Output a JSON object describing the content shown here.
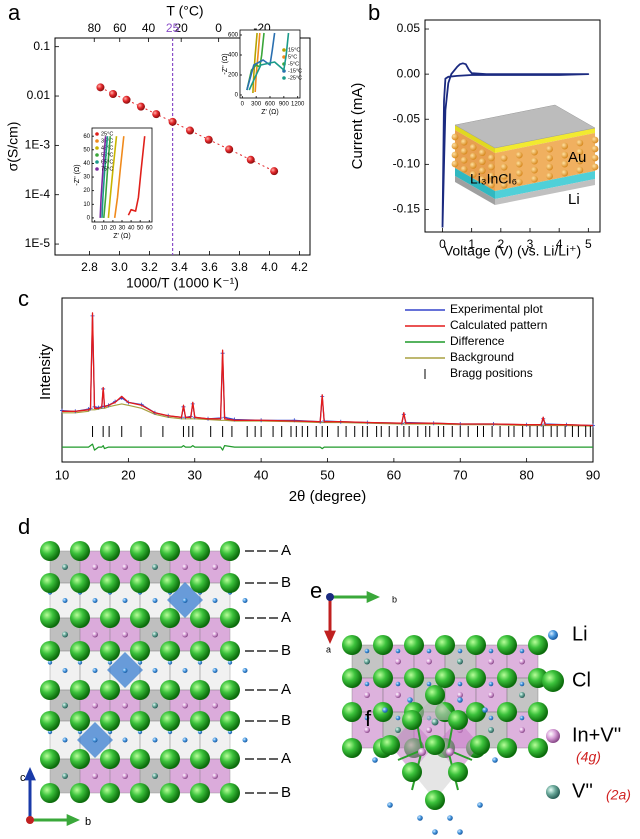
{
  "chart_data": [
    {
      "type": "scatter",
      "label": "a",
      "x2label": "T (°C)",
      "xlabel": "1000/T (1000 K⁻¹)",
      "ylabel": "σ(S/cm)",
      "x": [
        2.873,
        2.957,
        3.047,
        3.143,
        3.245,
        3.354,
        3.47,
        3.595,
        3.731,
        3.875,
        4.031
      ],
      "values": [
        0.015,
        0.011,
        0.0084,
        0.0061,
        0.0043,
        0.003,
        0.002,
        0.0013,
        0.00083,
        0.00051,
        0.0003
      ],
      "color": "#e3262a",
      "xlim": [
        2.57,
        4.27
      ],
      "ylim": [
        6e-06,
        0.15
      ],
      "log_y": true,
      "xticks": [
        2.8,
        {
          "value": 3,
          "label": "3.0"
        },
        3.2,
        3.4,
        3.6,
        3.8,
        {
          "value": 4,
          "label": "4.0"
        },
        4.2
      ],
      "yticks": [
        0.1,
        0.01,
        {
          "value": 0.001,
          "label": "1E-3"
        },
        {
          "value": 0.0001,
          "label": "1E-4"
        },
        {
          "value": 1e-05,
          "label": "1E-5"
        }
      ],
      "x2ticks": [
        80,
        60,
        40,
        20,
        0,
        -20
      ],
      "marker_x2": 25,
      "marker_color": "#8a4fc8"
    },
    {
      "type": "line",
      "xlabel": "Z' (Ω)",
      "ylabel": "-Z'' (Ω)",
      "xlim": [
        -3,
        63
      ],
      "ylim": [
        -3,
        66
      ],
      "xticks": [
        0,
        10,
        20,
        30,
        40,
        50,
        60
      ],
      "yticks": [
        0,
        10,
        20,
        30,
        40,
        50,
        60
      ],
      "series": [
        {
          "name": "25°C",
          "color": "#e0201b",
          "x": [
            37,
            40,
            45,
            48,
            51,
            55
          ],
          "values": [
            2,
            6,
            5,
            15,
            35,
            60
          ]
        },
        {
          "name": "35°C",
          "color": "#f08a1c",
          "x": [
            22,
            25,
            28,
            32
          ],
          "values": [
            0,
            15,
            35,
            60
          ]
        },
        {
          "name": "45°C",
          "color": "#c8b400",
          "x": [
            15,
            17,
            20,
            24
          ],
          "values": [
            0,
            15,
            35,
            60
          ]
        },
        {
          "name": "55°C",
          "color": "#3aa63a",
          "x": [
            10,
            12,
            14,
            17
          ],
          "values": [
            0,
            15,
            35,
            60
          ]
        },
        {
          "name": "65°C",
          "color": "#1a9a8a",
          "x": [
            8,
            9,
            11,
            14
          ],
          "values": [
            0,
            15,
            35,
            60
          ]
        },
        {
          "name": "75°C",
          "color": "#7a2aa0",
          "x": [
            6,
            7,
            9,
            12
          ],
          "values": [
            0,
            15,
            35,
            60
          ]
        }
      ]
    },
    {
      "type": "line",
      "xlabel": "Z' (Ω)",
      "ylabel": "-Z'' (Ω)",
      "xlim": [
        -50,
        1250
      ],
      "ylim": [
        -30,
        650
      ],
      "xticks": [
        0,
        300,
        600,
        900,
        1200
      ],
      "yticks": [
        0,
        200,
        400,
        600
      ],
      "series": [
        {
          "name": "15°C",
          "color": "#b5a300",
          "x": [
            230,
            250,
            280,
            320
          ],
          "values": [
            20,
            200,
            400,
            620
          ]
        },
        {
          "name": "5°C",
          "color": "#f08a1c",
          "x": [
            280,
            300,
            340,
            380
          ],
          "values": [
            30,
            200,
            400,
            620
          ]
        },
        {
          "name": "-5°C",
          "color": "#3aa63a",
          "x": [
            100,
            200,
            300,
            380,
            420,
            470
          ],
          "values": [
            50,
            250,
            300,
            280,
            400,
            620
          ]
        },
        {
          "name": "-15°C",
          "color": "#2a6fb0",
          "x": [
            100,
            250,
            450,
            600,
            650,
            700
          ],
          "values": [
            50,
            300,
            350,
            300,
            450,
            620
          ]
        },
        {
          "name": "-25°C",
          "color": "#1a9a8a",
          "x": [
            150,
            400,
            700,
            900,
            950,
            1000
          ],
          "values": [
            50,
            300,
            330,
            250,
            400,
            620
          ]
        }
      ]
    },
    {
      "type": "line",
      "label": "b",
      "xlabel": "Voltage (V) (vs. Li/Li⁺)",
      "ylabel": "Current (mA)",
      "x": [
        0,
        0.05,
        0.1,
        0.2,
        0.3,
        0.5,
        0.6,
        0.7,
        0.8,
        0.9,
        1.0,
        1.5,
        2,
        3,
        4,
        5,
        4,
        3,
        2,
        1,
        0.5,
        0.2,
        0.1,
        0.05,
        0
      ],
      "values": [
        -0.17,
        -0.1,
        -0.04,
        -0.01,
        0,
        0.008,
        0.011,
        0.012,
        0.011,
        0.005,
        0.001,
        0,
        0,
        0,
        0,
        0,
        -0.001,
        -0.001,
        -0.001,
        -0.001,
        -0.002,
        -0.003,
        -0.005,
        -0.03,
        -0.17
      ],
      "color": "#1b2a80",
      "xlim": [
        -0.6,
        5.4
      ],
      "ylim": [
        -0.175,
        0.06
      ],
      "xticks": [
        0,
        1,
        2,
        3,
        4,
        5
      ],
      "yticks": [
        0.05,
        {
          "value": 0,
          "label": "0.00"
        },
        -0.05,
        {
          "value": -0.1,
          "label": "-0.10"
        },
        -0.15
      ],
      "inset_labels": [
        "Au",
        "Li₃InCl₆",
        "Li"
      ]
    },
    {
      "type": "line",
      "label": "c",
      "xlabel": "2θ (degree)",
      "ylabel": "Intensity",
      "xlim": [
        10,
        90
      ],
      "ylim": [
        0,
        110
      ],
      "xticks": [
        10,
        20,
        30,
        40,
        50,
        60,
        70,
        80,
        90
      ],
      "x": [
        10,
        12,
        14,
        14.3,
        14.6,
        14.9,
        15.5,
        16,
        16.2,
        16.4,
        17,
        18,
        19,
        20,
        22,
        24,
        26,
        28,
        28.3,
        28.6,
        29.4,
        29.7,
        30,
        32,
        33.9,
        34.2,
        34.5,
        36,
        40,
        45,
        48.9,
        49.2,
        49.5,
        52,
        56,
        61.2,
        61.5,
        61.8,
        66,
        70,
        75,
        80,
        82.2,
        82.5,
        82.8,
        86,
        90
      ],
      "series": [
        {
          "name": "Experimental plot",
          "color": "#3344cc",
          "markers": true,
          "values": [
            34.5,
            34,
            35.5,
            36,
            98,
            37,
            36.5,
            37,
            49,
            37.5,
            38,
            40.5,
            43,
            40,
            38.5,
            33,
            31,
            30,
            37,
            30,
            30.5,
            39,
            30,
            29,
            29.5,
            73,
            30,
            28.5,
            28,
            28,
            27,
            44,
            27.5,
            27,
            26.5,
            26,
            32,
            26.5,
            26,
            25.5,
            25.5,
            25,
            25,
            29,
            25.5,
            25,
            24.5
          ]
        },
        {
          "name": "Calculated pattern",
          "color": "#e31a1a",
          "values": [
            34,
            34,
            35,
            36,
            100,
            36,
            36,
            37,
            50,
            37,
            38,
            40,
            44,
            40,
            38,
            33,
            31,
            30,
            38,
            30,
            30,
            40,
            30,
            29,
            29,
            75,
            29,
            28,
            28,
            27.5,
            27,
            45,
            27,
            27,
            26.5,
            26,
            33,
            26,
            26,
            25.5,
            25.5,
            25,
            25,
            30,
            25,
            25,
            24.5
          ]
        },
        {
          "name": "Difference",
          "color": "#1f9a2a",
          "values": [
            10,
            10,
            10,
            11,
            12,
            8,
            10,
            10,
            11,
            9,
            10,
            10,
            10,
            10,
            10,
            10,
            10,
            10,
            11,
            10,
            10,
            11,
            10,
            10,
            10,
            8,
            11,
            10,
            10,
            10,
            10,
            9,
            10,
            10,
            10,
            10,
            10,
            10,
            10,
            10,
            10,
            10,
            10,
            10,
            10,
            10,
            10
          ]
        },
        {
          "name": "Background",
          "color": "#a8a040",
          "values": [
            33,
            33,
            34,
            35,
            35,
            35,
            35.5,
            36,
            36,
            36,
            37,
            38,
            39,
            38,
            36,
            32,
            30,
            29,
            29,
            29,
            29,
            29,
            29,
            28.5,
            28,
            28,
            28,
            27.5,
            27.5,
            27,
            26.5,
            26.5,
            26.5,
            26.5,
            26,
            25.5,
            25.5,
            25.5,
            25.5,
            25,
            25,
            24.5,
            24.5,
            24.5,
            24.5,
            24.5,
            24
          ]
        }
      ],
      "bragg": {
        "name": "Bragg positions",
        "color": "#000000",
        "positions": [
          14.6,
          16.2,
          17.1,
          19.0,
          21.9,
          25.2,
          28.3,
          29.1,
          29.7,
          32.4,
          34.2,
          35.6,
          37.9,
          39.1,
          40.0,
          41.8,
          43.1,
          44.5,
          45.3,
          46.2,
          47.0,
          48.3,
          49.2,
          50.0,
          51.6,
          52.8,
          54.1,
          55.3,
          56.0,
          57.4,
          58.1,
          59.3,
          60.5,
          61.5,
          62.3,
          63.6,
          64.8,
          65.4,
          66.7,
          67.5,
          68.8,
          70.0,
          71.2,
          72.6,
          73.5,
          74.8,
          76.0,
          77.3,
          78.1,
          79.4,
          80.5,
          81.6,
          82.5,
          83.7,
          84.6,
          85.8,
          86.9,
          87.8,
          88.9,
          89.6
        ]
      }
    }
  ],
  "structure": {
    "d": {
      "label": "d",
      "layers": [
        "A",
        "B",
        "A",
        "B",
        "A",
        "B",
        "A",
        "B"
      ],
      "axes": [
        "c",
        "b"
      ]
    },
    "e": {
      "label": "e",
      "axes": [
        "b",
        "a"
      ]
    },
    "f": {
      "label": "f"
    },
    "legend": [
      {
        "name": "Li"
      },
      {
        "name": "Cl"
      },
      {
        "name": "In+V''",
        "site": "(4g)"
      },
      {
        "name": "V''",
        "site": "(2a)"
      }
    ]
  }
}
